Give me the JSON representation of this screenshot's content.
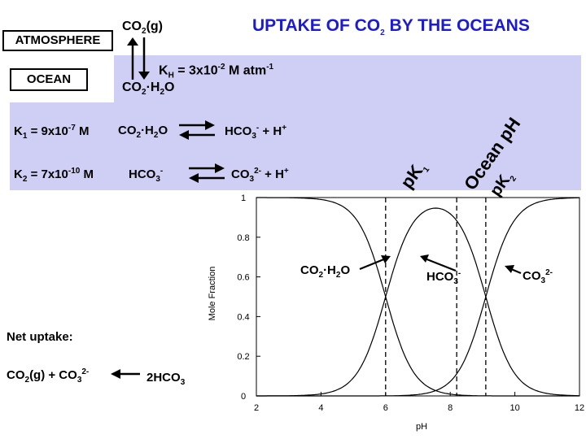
{
  "title": {
    "main": "UPTAKE OF CO",
    "sub": "2",
    "rest": " BY THE OCEANS"
  },
  "atmosphere_label": "ATMOSPHERE",
  "ocean_label": "OCEAN",
  "co2_gas": {
    "a": "CO",
    "sub": "2",
    "b": "(g)"
  },
  "kh": {
    "a": "K",
    "sub": "H",
    "b": " = 3x10",
    "sup1": "-2",
    "c": " M atm",
    "sup2": "-1"
  },
  "co2h2o_top": {
    "a": "CO",
    "sub": "2",
    "b": "·H",
    "sub2": "2",
    "c": "O"
  },
  "k1": {
    "a": "K",
    "sub": "1",
    "b": " = 9x10",
    "sup": "-7",
    "c": " M"
  },
  "k1_left": {
    "a": "CO",
    "sub": "2",
    "b": "·H",
    "sub2": "2",
    "c": "O"
  },
  "k1_right": {
    "a": "HCO",
    "sub": "3",
    "sup": "-",
    "b": " + H",
    "sup2": "+"
  },
  "k2": {
    "a": "K",
    "sub": "2",
    "b": " = 7x10",
    "sup": "-10",
    "c": " M"
  },
  "k2_left": {
    "a": "HCO",
    "sub": "3",
    "sup": "-"
  },
  "k2_right": {
    "a": "CO",
    "sub": "3",
    "sup": "2-",
    "b": " + H",
    "sup2": "+"
  },
  "pk1": {
    "a": "pK",
    "sub": "1"
  },
  "ocean_ph": "Ocean pH",
  "pk2": {
    "a": "pK",
    "sub": "2"
  },
  "species": {
    "co2": {
      "a": "CO",
      "sub": "2",
      "b": "·H",
      "sub2": "2",
      "c": "O"
    },
    "hco3": {
      "a": "HCO",
      "sub": "3",
      "sup": "-"
    },
    "co3": {
      "a": "CO",
      "sub": "3",
      "sup": "2-"
    }
  },
  "net_uptake_label": "Net uptake:",
  "net_left": {
    "a": "CO",
    "sub": "2",
    "b": "(g) + CO",
    "sub2": "3",
    "sup": "2-"
  },
  "net_right": {
    "a": "2HCO",
    "sub": "3"
  },
  "chart_data": {
    "type": "line",
    "xlabel": "pH",
    "ylabel": "Mole Fraction",
    "xlim": [
      2,
      12
    ],
    "ylim": [
      0,
      1
    ],
    "x_ticks": [
      "2",
      "4",
      "6",
      "8",
      "10",
      "12"
    ],
    "y_ticks": [
      "0",
      "0.2",
      "0.4",
      "0.6",
      "0.8",
      "1"
    ],
    "pK1": 6.0,
    "pK2": 9.1,
    "dashed_lines_pH": [
      6.0,
      8.2,
      9.1
    ],
    "series": [
      {
        "species": "CO2·H2O",
        "x": [
          2,
          3,
          4,
          5,
          5.5,
          6,
          6.5,
          7,
          8,
          9,
          10,
          12
        ],
        "y": [
          1.0,
          0.999,
          0.99,
          0.909,
          0.76,
          0.5,
          0.24,
          0.091,
          0.01,
          0.001,
          0.0,
          0.0
        ]
      },
      {
        "species": "HCO3-",
        "x": [
          2,
          3,
          4,
          5,
          5.5,
          6,
          6.5,
          7,
          7.5,
          8,
          8.5,
          9,
          9.5,
          10,
          11,
          12
        ],
        "y": [
          0.0,
          0.001,
          0.01,
          0.09,
          0.24,
          0.5,
          0.75,
          0.9,
          0.96,
          0.97,
          0.92,
          0.56,
          0.28,
          0.11,
          0.012,
          0.001
        ]
      },
      {
        "species": "CO3 2-",
        "x": [
          2,
          7,
          8,
          8.5,
          9,
          9.5,
          10,
          10.5,
          11,
          12
        ],
        "y": [
          0.0,
          0.001,
          0.07,
          0.2,
          0.44,
          0.71,
          0.89,
          0.96,
          0.988,
          0.999
        ]
      }
    ]
  }
}
